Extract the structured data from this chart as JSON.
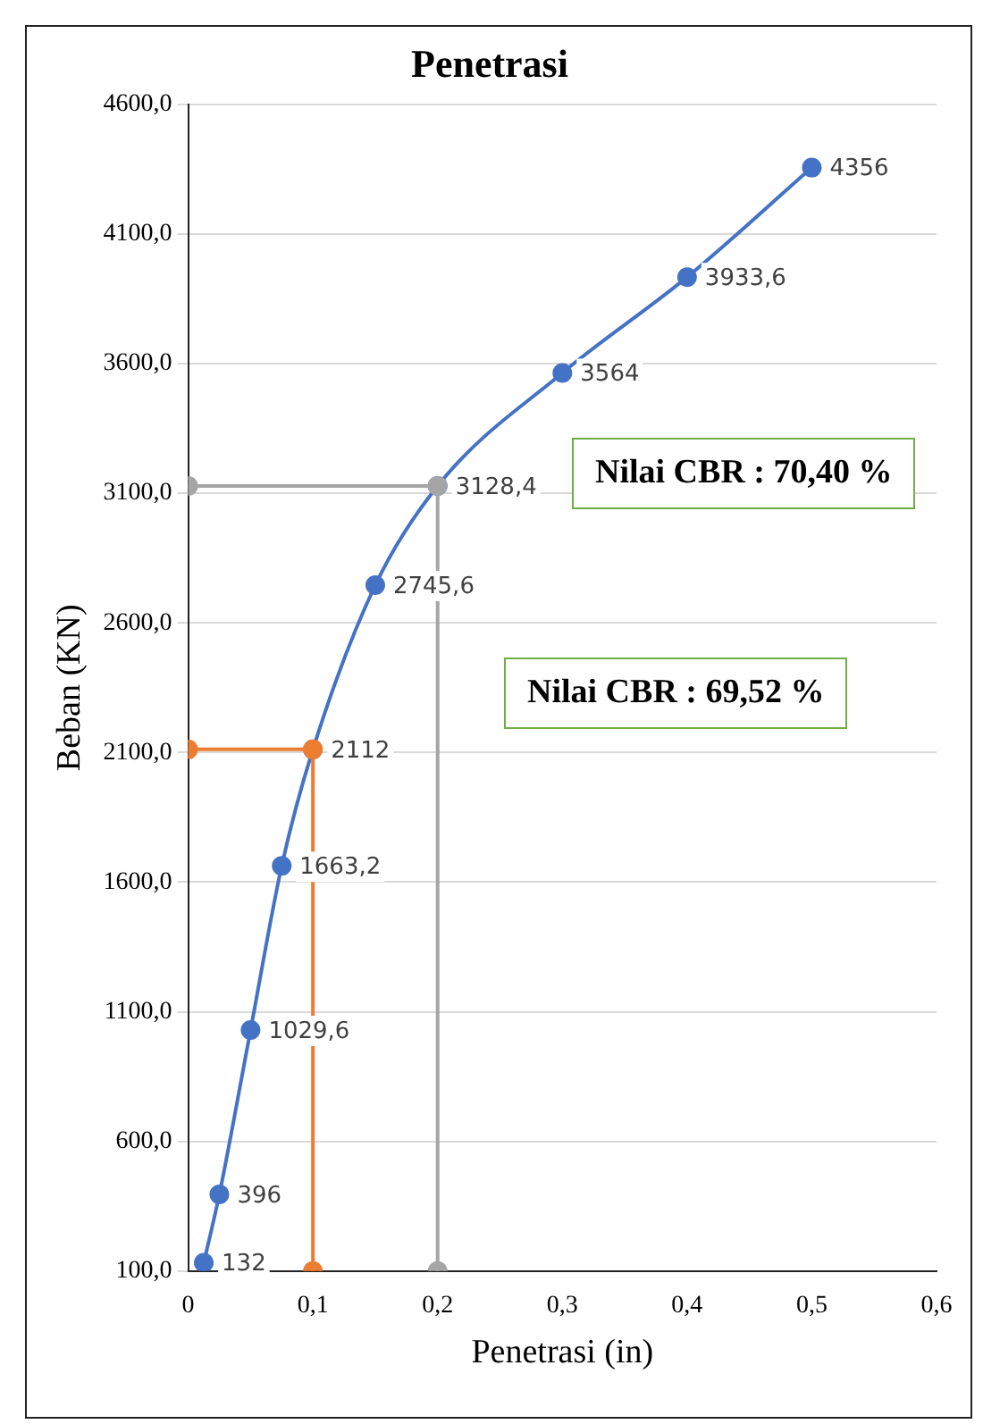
{
  "chart_data": {
    "type": "line",
    "title": "Penetrasi",
    "xlabel": "Penetrasi (in)",
    "ylabel": "Beban (KN)",
    "series": [
      {
        "color": "#a5a5a5",
        "x": [
          0,
          0.2,
          0.2
        ],
        "values": [
          3128.4,
          3128.4,
          100
        ]
      },
      {
        "color": "#ed7d31",
        "x": [
          0,
          0.1,
          0.1
        ],
        "values": [
          2112,
          2112,
          100
        ]
      },
      {
        "color": "#4472c4",
        "x": [
          0.0125,
          0.025,
          0.05,
          0.075,
          0.1,
          0.15,
          0.2,
          0.3,
          0.4,
          0.5
        ],
        "values": [
          132,
          396,
          1029.6,
          1663.2,
          2112,
          2745.6,
          3128.4,
          3564,
          3933.6,
          4356
        ],
        "value_labels": [
          "132",
          "396",
          "1029,6",
          "1663,2",
          "2112",
          "2745,6",
          "3128,4",
          "3564",
          "3933,6",
          "4356"
        ]
      }
    ],
    "xlim": [
      0,
      0.6
    ],
    "xticks": [
      0,
      {
        "value": 0.1,
        "label": "0,1"
      },
      {
        "value": 0.2,
        "label": "0,2"
      },
      {
        "value": 0.3,
        "label": "0,3"
      },
      {
        "value": 0.4,
        "label": "0,4"
      },
      {
        "value": 0.5,
        "label": "0,5"
      },
      {
        "value": 0.6,
        "label": "0,6"
      }
    ],
    "ylim": [
      100,
      4600
    ],
    "yticks": [
      {
        "value": 100,
        "label": "100,0"
      },
      {
        "value": 600,
        "label": "600,0"
      },
      {
        "value": 1100,
        "label": "1100,0"
      },
      {
        "value": 1600,
        "label": "1600,0"
      },
      {
        "value": 2100,
        "label": "2100,0"
      },
      {
        "value": 2600,
        "label": "2600,0"
      },
      {
        "value": 3100,
        "label": "3100,0"
      },
      {
        "value": 3600,
        "label": "3600,0"
      },
      {
        "value": 4100,
        "label": "4100,0"
      },
      {
        "value": 4600,
        "label": "4600,0"
      }
    ],
    "grid": "y",
    "legend": false,
    "marker": "circle",
    "annotations": [
      "Nilai CBR : 70,40 %",
      "Nilai CBR : 69,52 %"
    ]
  }
}
